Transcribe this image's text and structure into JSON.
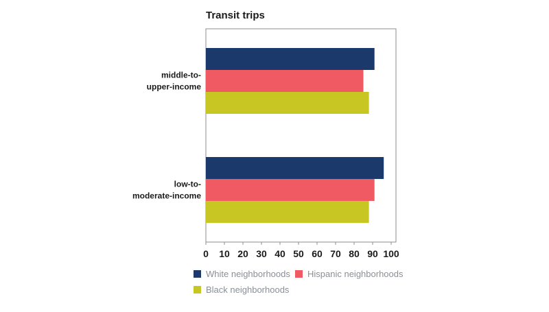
{
  "chart_data": {
    "type": "bar",
    "orientation": "horizontal",
    "title": "Transit trips",
    "categories": [
      [
        "middle-to-",
        "upper-income"
      ],
      [
        "low-to-",
        "moderate-income"
      ]
    ],
    "series": [
      {
        "name": "White neighborhoods",
        "color": "#1b3a6b",
        "values": [
          91,
          96
        ]
      },
      {
        "name": "Hispanic neighborhoods",
        "color": "#f05a63",
        "values": [
          85,
          91
        ]
      },
      {
        "name": "Black neighborhoods",
        "color": "#c8c623",
        "values": [
          88,
          88
        ]
      }
    ],
    "xlim": [
      0,
      100
    ],
    "xticks": [
      0,
      10,
      20,
      30,
      40,
      50,
      60,
      70,
      80,
      90,
      100
    ],
    "grid": false,
    "legend_position": "bottom"
  }
}
